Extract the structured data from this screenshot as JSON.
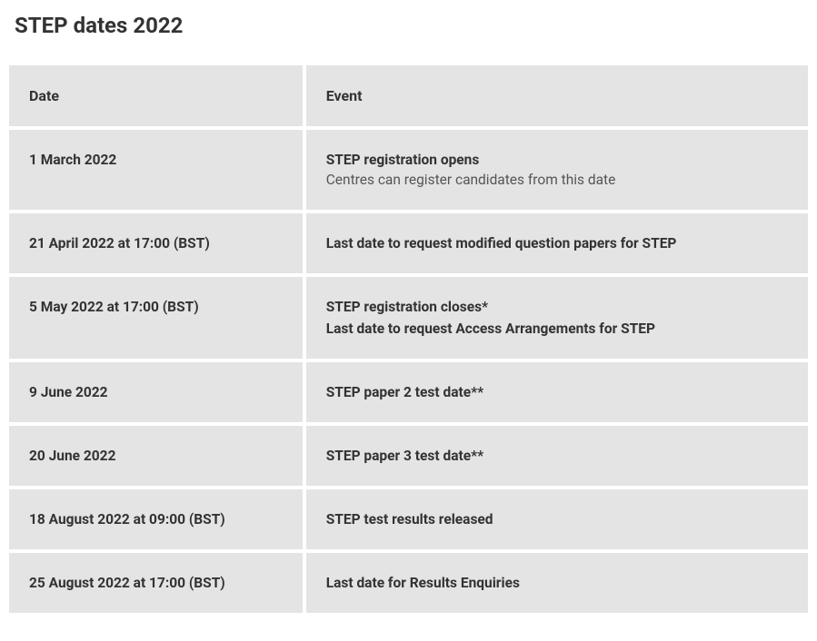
{
  "title": "STEP dates 2022",
  "table": {
    "columns": [
      "Date",
      "Event"
    ],
    "header_bg": "#e4e4e4",
    "row_bg": "#e4e4e4",
    "border_color": "#ffffff",
    "title_fontsize": 24,
    "header_fontsize": 16,
    "cell_fontsize": 15.5,
    "rows": [
      {
        "date": "1 March 2022",
        "events": [
          {
            "text": "STEP registration opens",
            "bold": true
          },
          {
            "text": "Centres can register candidates from this date",
            "bold": false
          }
        ]
      },
      {
        "date": "21 April 2022 at 17:00 (BST)",
        "events": [
          {
            "text": "Last date to request modified question papers for STEP",
            "bold": true
          }
        ]
      },
      {
        "date": "5 May 2022 at 17:00 (BST)",
        "events": [
          {
            "text": "STEP registration closes*",
            "bold": true
          },
          {
            "text": "Last date to request Access Arrangements for STEP",
            "bold": true
          }
        ]
      },
      {
        "date": "9 June 2022",
        "events": [
          {
            "text": "STEP paper 2 test date**",
            "bold": true
          }
        ]
      },
      {
        "date": "20 June 2022",
        "events": [
          {
            "text": "STEP paper 3 test date**",
            "bold": true
          }
        ]
      },
      {
        "date": "18 August 2022 at 09:00 (BST)",
        "events": [
          {
            "text": "STEP test results released",
            "bold": true
          }
        ]
      },
      {
        "date": "25 August 2022 at 17:00 (BST)",
        "events": [
          {
            "text": "Last date for Results Enquiries",
            "bold": true
          }
        ]
      }
    ]
  }
}
